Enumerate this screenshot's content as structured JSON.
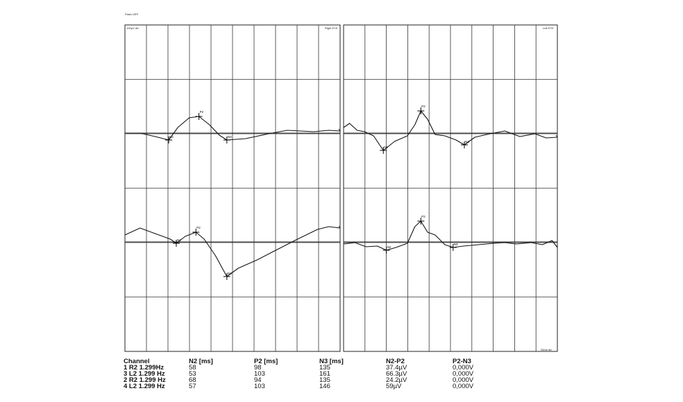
{
  "header": {
    "label": "Flash-VEP"
  },
  "panels": [
    {
      "corner_left": "100µV div",
      "corner_right": "Right EYE"
    },
    {
      "corner_left": "",
      "corner_right": "Left EYE",
      "footer_right": "25ms div"
    }
  ],
  "table": {
    "headers": [
      "Channel",
      "N2 [ms]",
      "P2 [ms]",
      "N3 [ms]",
      "N2-P2",
      "P2-N3"
    ],
    "rows": [
      [
        "1 R2 1.299Hz",
        "58",
        "98",
        "135",
        "37.4µV",
        "0,000V"
      ],
      [
        "3 L2 1.299 Hz",
        "53",
        "103",
        "161",
        "66.3µV",
        "0,000V"
      ],
      [
        "2 R2 1.299 Hz",
        "68",
        "94",
        "135",
        "24.2µV",
        "0,000V"
      ],
      [
        "4 L2 1.299 Hz",
        "57",
        "103",
        "146",
        "59µV",
        "0,000V"
      ]
    ]
  },
  "chart_data": {
    "type": "line",
    "title": "",
    "x_unit": "ms",
    "y_unit": "µV",
    "grid": true,
    "panels": [
      {
        "name": "Right EYE",
        "traces": [
          {
            "channel": "1 R2 1.299Hz",
            "points": [
              [
                0,
                0
              ],
              [
                20,
                0
              ],
              [
                40,
                -5
              ],
              [
                58,
                -10
              ],
              [
                70,
                8
              ],
              [
                85,
                22
              ],
              [
                98,
                24
              ],
              [
                112,
                12
              ],
              [
                125,
                -3
              ],
              [
                135,
                -10
              ],
              [
                160,
                -8
              ],
              [
                190,
                -1
              ],
              [
                215,
                4
              ],
              [
                250,
                2
              ],
              [
                270,
                4
              ],
              [
                285,
                3
              ]
            ],
            "markers": [
              {
                "label": "N2",
                "x": 58,
                "y": -10
              },
              {
                "label": "P2",
                "x": 98,
                "y": 24
              },
              {
                "label": "N3",
                "x": 135,
                "y": -10
              }
            ]
          },
          {
            "channel": "2 R2 1.299 Hz",
            "points": [
              [
                0,
                10
              ],
              [
                20,
                20
              ],
              [
                40,
                12
              ],
              [
                60,
                4
              ],
              [
                68,
                -2
              ],
              [
                80,
                8
              ],
              [
                94,
                14
              ],
              [
                105,
                4
              ],
              [
                120,
                -20
              ],
              [
                135,
                -50
              ],
              [
                150,
                -38
              ],
              [
                175,
                -26
              ],
              [
                200,
                -12
              ],
              [
                225,
                2
              ],
              [
                255,
                18
              ],
              [
                270,
                22
              ],
              [
                285,
                20
              ]
            ],
            "markers": [
              {
                "label": "N2",
                "x": 68,
                "y": -2
              },
              {
                "label": "P2",
                "x": 94,
                "y": 14
              },
              {
                "label": "N3",
                "x": 135,
                "y": -50
              }
            ]
          }
        ]
      },
      {
        "name": "Left EYE",
        "traces": [
          {
            "channel": "3 L2 1.299 Hz",
            "points": [
              [
                0,
                8
              ],
              [
                8,
                14
              ],
              [
                18,
                4
              ],
              [
                28,
                2
              ],
              [
                40,
                -4
              ],
              [
                53,
                -25
              ],
              [
                68,
                -12
              ],
              [
                85,
                -4
              ],
              [
                95,
                12
              ],
              [
                103,
                32
              ],
              [
                112,
                20
              ],
              [
                122,
                -2
              ],
              [
                135,
                -4
              ],
              [
                150,
                -10
              ],
              [
                161,
                -17
              ],
              [
                175,
                -6
              ],
              [
                195,
                -1
              ],
              [
                215,
                3
              ],
              [
                235,
                -5
              ],
              [
                255,
                -1
              ],
              [
                270,
                -7
              ],
              [
                285,
                -6
              ]
            ],
            "markers": [
              {
                "label": "N2",
                "x": 53,
                "y": -25
              },
              {
                "label": "P2",
                "x": 103,
                "y": 32
              },
              {
                "label": "N3",
                "x": 161,
                "y": -17
              }
            ]
          },
          {
            "channel": "4 L2 1.299 Hz",
            "points": [
              [
                0,
                -3
              ],
              [
                15,
                -1
              ],
              [
                30,
                -7
              ],
              [
                45,
                -6
              ],
              [
                57,
                -12
              ],
              [
                70,
                -8
              ],
              [
                85,
                -2
              ],
              [
                95,
                22
              ],
              [
                103,
                30
              ],
              [
                112,
                14
              ],
              [
                122,
                10
              ],
              [
                135,
                -4
              ],
              [
                146,
                -8
              ],
              [
                160,
                -6
              ],
              [
                180,
                -4
              ],
              [
                200,
                -2
              ],
              [
                215,
                -1
              ],
              [
                230,
                -3
              ],
              [
                250,
                -1
              ],
              [
                265,
                -4
              ],
              [
                278,
                2
              ],
              [
                285,
                -8
              ]
            ],
            "markers": [
              {
                "label": "N2",
                "x": 57,
                "y": -12
              },
              {
                "label": "P2",
                "x": 103,
                "y": 30
              },
              {
                "label": "N3",
                "x": 146,
                "y": -8
              }
            ]
          }
        ]
      }
    ]
  }
}
